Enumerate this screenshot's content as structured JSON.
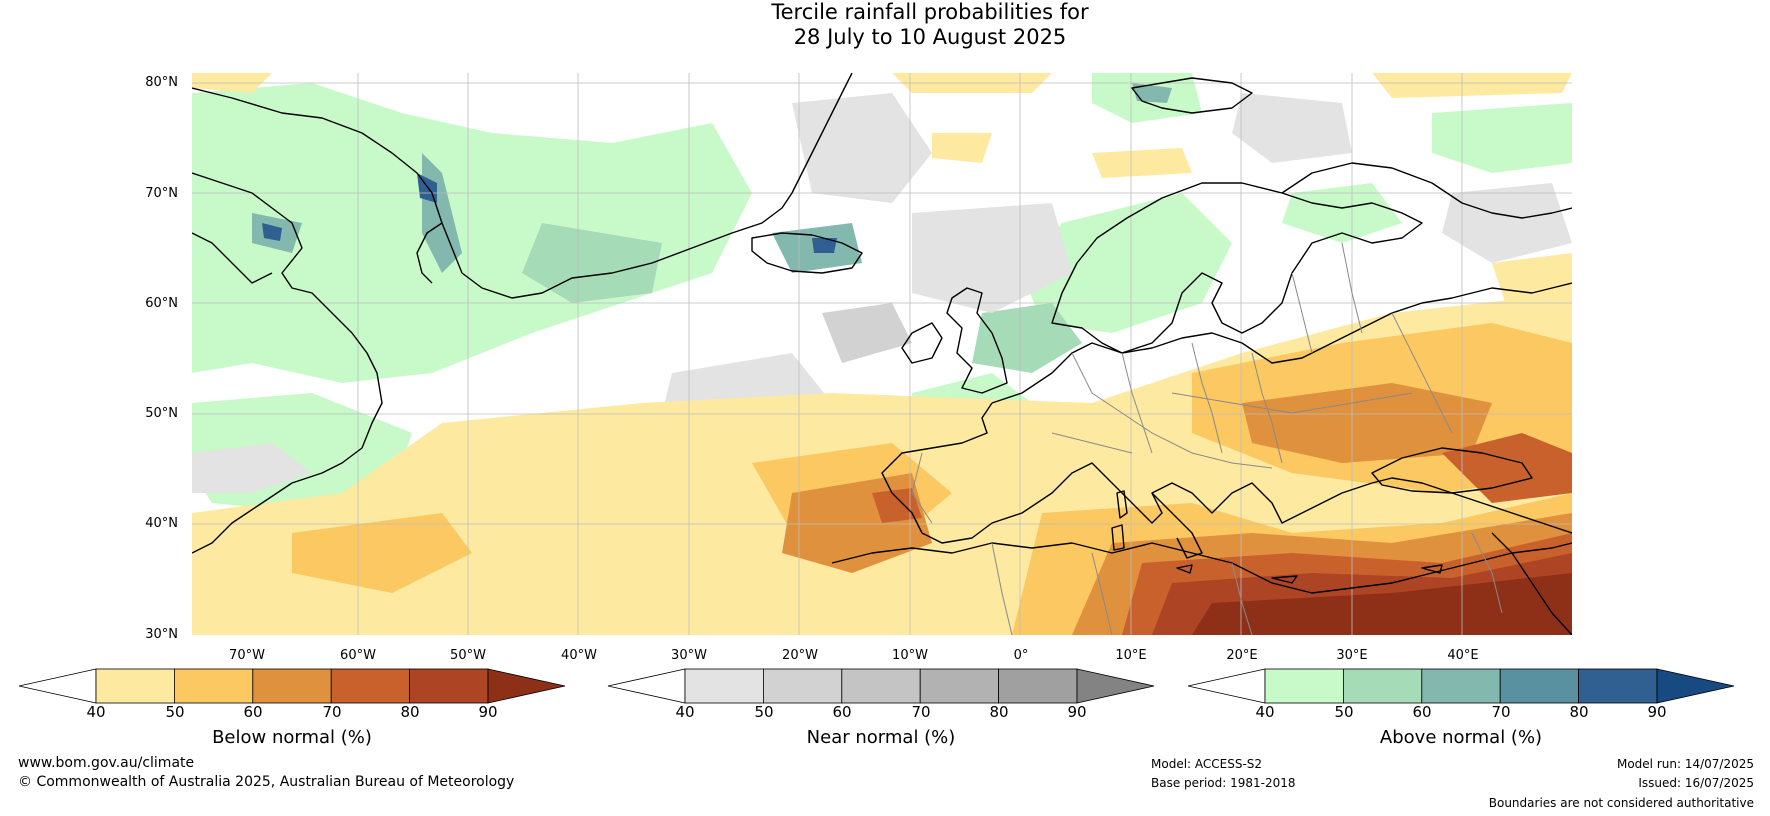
{
  "title": {
    "line1": "Tercile rainfall probabilities for",
    "line2": "28 July to 10 August 2025"
  },
  "latitude_labels": [
    "80°N",
    "70°N",
    "60°N",
    "50°N",
    "40°N",
    "30°N"
  ],
  "longitude_labels": [
    "70°W",
    "60°W",
    "50°W",
    "40°W",
    "30°W",
    "20°W",
    "10°W",
    "0°",
    "10°E",
    "20°E",
    "30°E",
    "40°E"
  ],
  "colorbars": [
    {
      "label": "Below normal (%)",
      "ticks": [
        "40",
        "50",
        "60",
        "70",
        "80",
        "90"
      ],
      "colors": [
        "#ffffff",
        "#fde9a0",
        "#fbc862",
        "#e0913d",
        "#c9612d",
        "#ad4524",
        "#8e2f18"
      ]
    },
    {
      "label": "Near normal (%)",
      "ticks": [
        "40",
        "50",
        "60",
        "70",
        "80",
        "90"
      ],
      "colors": [
        "#ffffff",
        "#e3e3e3",
        "#d2d2d2",
        "#c4c4c4",
        "#b2b2b2",
        "#a0a0a0",
        "#838383"
      ]
    },
    {
      "label": "Above normal (%)",
      "ticks": [
        "40",
        "50",
        "60",
        "70",
        "80",
        "90"
      ],
      "colors": [
        "#ffffff",
        "#c8f9c9",
        "#a6dbb7",
        "#82b8ae",
        "#5a91a0",
        "#2f6091",
        "#174a80"
      ]
    }
  ],
  "footer": {
    "website": "www.bom.gov.au/climate",
    "copyright": "© Commonwealth of Australia 2025, Australian Bureau of Meteorology",
    "model": "Model: ACCESS-S2",
    "base_period": "Base period: 1981-2018",
    "model_run": "Model run: 14/07/2025",
    "issued": "Issued: 16/07/2025",
    "disclaimer": "Boundaries are not considered authoritative"
  }
}
